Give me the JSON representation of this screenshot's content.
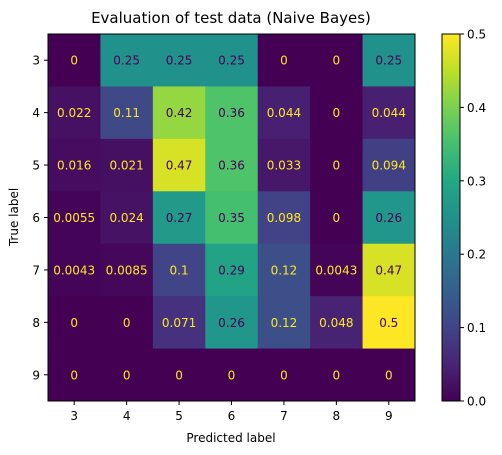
{
  "chart_data": {
    "type": "heatmap",
    "title": "Evaluation of test data (Naive Bayes)",
    "xlabel": "Predicted label",
    "ylabel": "True label",
    "x_categories": [
      "3",
      "4",
      "5",
      "6",
      "7",
      "8",
      "9"
    ],
    "y_categories": [
      "3",
      "4",
      "5",
      "6",
      "7",
      "8",
      "9"
    ],
    "values": [
      [
        0,
        0.25,
        0.25,
        0.25,
        0,
        0,
        0.25
      ],
      [
        0.022,
        0.11,
        0.42,
        0.36,
        0.044,
        0,
        0.044
      ],
      [
        0.016,
        0.021,
        0.47,
        0.36,
        0.033,
        0,
        0.094
      ],
      [
        0.0055,
        0.024,
        0.27,
        0.35,
        0.098,
        0,
        0.26
      ],
      [
        0.0043,
        0.0085,
        0.1,
        0.29,
        0.12,
        0.0043,
        0.47
      ],
      [
        0,
        0,
        0.071,
        0.26,
        0.12,
        0.048,
        0.5
      ],
      [
        0,
        0,
        0,
        0,
        0,
        0,
        0
      ]
    ],
    "cell_labels": [
      [
        "0",
        "0.25",
        "0.25",
        "0.25",
        "0",
        "0",
        "0.25"
      ],
      [
        "0.022",
        "0.11",
        "0.42",
        "0.36",
        "0.044",
        "0",
        "0.044"
      ],
      [
        "0.016",
        "0.021",
        "0.47",
        "0.36",
        "0.033",
        "0",
        "0.094"
      ],
      [
        "0.0055",
        "0.024",
        "0.27",
        "0.35",
        "0.098",
        "0",
        "0.26"
      ],
      [
        "0.0043",
        "0.0085",
        "0.1",
        "0.29",
        "0.12",
        "0.0043",
        "0.47"
      ],
      [
        "0",
        "0",
        "0.071",
        "0.26",
        "0.12",
        "0.048",
        "0.5"
      ],
      [
        "0",
        "0",
        "0",
        "0",
        "0",
        "0",
        "0"
      ]
    ],
    "colormap": "viridis",
    "color_range": [
      0,
      0.5
    ],
    "colorbar_ticks": [
      "0.0",
      "0.1",
      "0.2",
      "0.3",
      "0.4",
      "0.5"
    ],
    "text_color_dark": "#440154",
    "text_color_light": "#fde725",
    "grid": false
  }
}
